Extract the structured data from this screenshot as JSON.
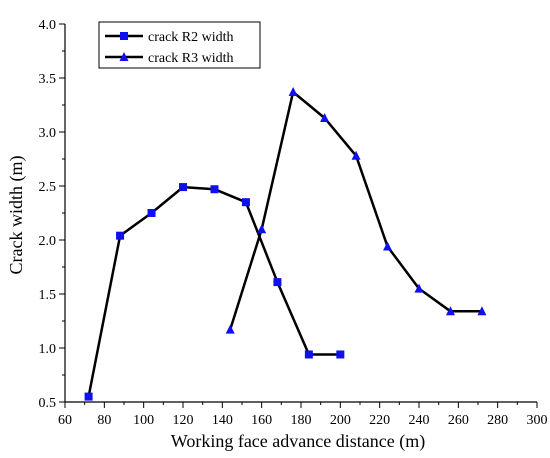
{
  "chart_data": {
    "type": "line",
    "xlabel": "Working face advance distance (m)",
    "ylabel": "Crack width (m)",
    "xlim": [
      60,
      300
    ],
    "ylim": [
      0.5,
      4.0
    ],
    "xticks": [
      60,
      70,
      80,
      90,
      100,
      110,
      120,
      130,
      140,
      150,
      160,
      170,
      180,
      190,
      200,
      210,
      220,
      230,
      240,
      250,
      260,
      270,
      280,
      290,
      300
    ],
    "xtick_labels": [
      "60",
      "80",
      "100",
      "120",
      "140",
      "160",
      "180",
      "200",
      "220",
      "240",
      "260",
      "280",
      "300"
    ],
    "yticks": [
      0.5,
      0.75,
      1.0,
      1.25,
      1.5,
      1.75,
      2.0,
      2.25,
      2.5,
      2.75,
      3.0,
      3.25,
      3.5,
      3.75,
      4.0
    ],
    "ytick_labels": [
      "0.5",
      "1.0",
      "1.5",
      "2.0",
      "2.5",
      "3.0",
      "3.5",
      "4.0"
    ],
    "legend_position": "top-left",
    "grid": false,
    "series": [
      {
        "name": "crack R2 width",
        "marker": "square",
        "line_color": "#000000",
        "marker_color": "#1010ee",
        "points": [
          [
            72,
            0.55
          ],
          [
            88,
            2.04
          ],
          [
            104,
            2.25
          ],
          [
            120,
            2.49
          ],
          [
            136,
            2.47
          ],
          [
            152,
            2.35
          ],
          [
            168,
            1.61
          ],
          [
            184,
            0.94
          ],
          [
            200,
            0.94
          ]
        ]
      },
      {
        "name": "crack R3 width",
        "marker": "triangle",
        "line_color": "#000000",
        "marker_color": "#1010ee",
        "points": [
          [
            144,
            1.17
          ],
          [
            160,
            2.1
          ],
          [
            176,
            3.37
          ],
          [
            192,
            3.13
          ],
          [
            208,
            2.78
          ],
          [
            224,
            1.94
          ],
          [
            240,
            1.55
          ],
          [
            256,
            1.34
          ],
          [
            272,
            1.34
          ]
        ]
      }
    ]
  }
}
